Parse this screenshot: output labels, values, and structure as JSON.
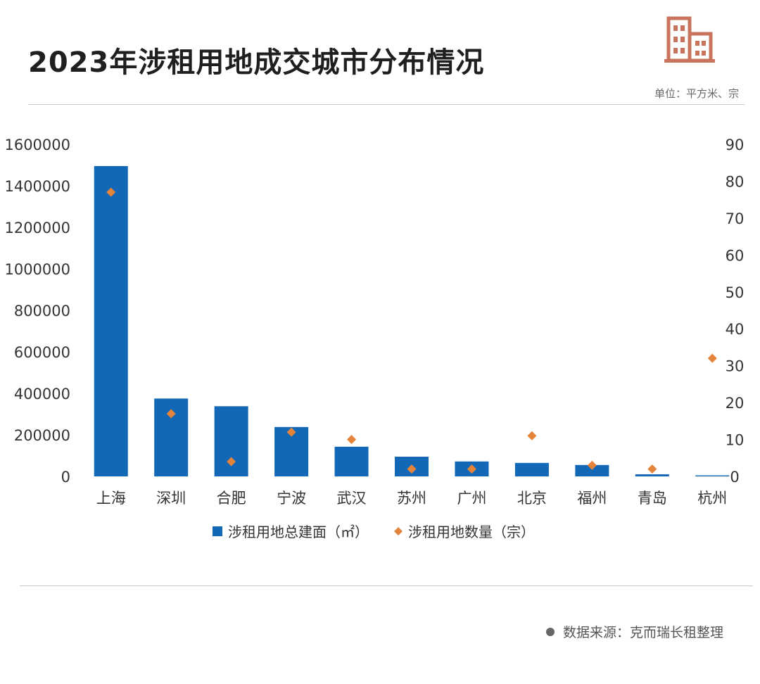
{
  "title": "2023年涉租用地成交城市分布情况",
  "unit_note": "单位：平方米、宗",
  "source_note": "数据来源：克而瑞长租整理",
  "colors": {
    "bar": "#1267B7",
    "marker": "#E4843A",
    "icon": "#C9735C"
  },
  "chart_data": {
    "type": "bar",
    "categories": [
      "上海",
      "深圳",
      "合肥",
      "宁波",
      "武汉",
      "苏州",
      "广州",
      "北京",
      "福州",
      "青岛",
      "杭州"
    ],
    "series": [
      {
        "name": "涉租用地总建面（㎡）",
        "type": "bar",
        "axis": "left",
        "values": [
          1495000,
          375000,
          338000,
          238000,
          143000,
          95000,
          72000,
          65000,
          55000,
          10000,
          5000
        ]
      },
      {
        "name": "涉租用地数量（宗）",
        "type": "scatter",
        "axis": "right",
        "values": [
          77,
          17,
          4,
          12,
          10,
          2,
          2,
          11,
          3,
          2,
          32
        ]
      }
    ],
    "y_left": {
      "min": 0,
      "max": 1600000,
      "ticks": [
        0,
        200000,
        400000,
        600000,
        800000,
        1000000,
        1200000,
        1400000,
        1600000
      ]
    },
    "y_right": {
      "min": 0,
      "max": 90,
      "ticks": [
        0,
        10,
        20,
        30,
        40,
        50,
        60,
        70,
        80,
        90
      ]
    },
    "grid": false,
    "legend": "bottom"
  }
}
